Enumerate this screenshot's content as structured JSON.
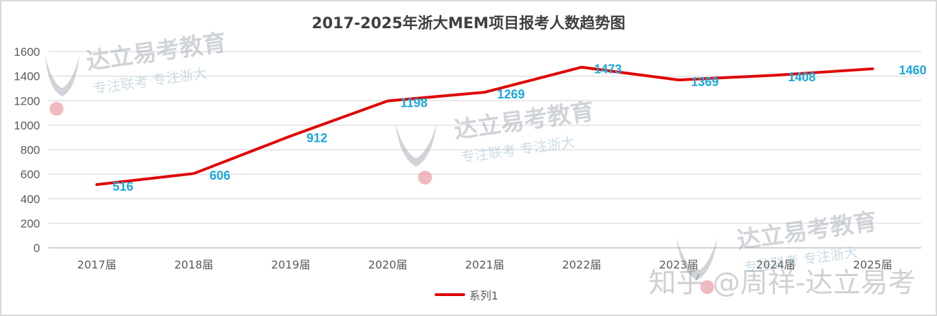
{
  "chart_data": {
    "type": "line",
    "title": "2017-2025年浙大MEM项目报考人数趋势图",
    "categories": [
      "2017届",
      "2018届",
      "2019届",
      "2020届",
      "2021届",
      "2022届",
      "2023届",
      "2024届",
      "2025届"
    ],
    "series": [
      {
        "name": "系列1",
        "values": [
          516,
          606,
          912,
          1198,
          1269,
          1473,
          1369,
          1408,
          1460
        ],
        "color": "#e00000"
      }
    ],
    "xlabel": "",
    "ylabel": "",
    "ylim": [
      0,
      1600
    ],
    "yticks": [
      0,
      200,
      400,
      600,
      800,
      1000,
      1200,
      1400,
      1600
    ],
    "grid": true,
    "data_labels": true,
    "data_label_color": "#1aa7dc",
    "legend_position": "bottom"
  },
  "legend": {
    "label": "系列1"
  },
  "watermarks": {
    "brand_main": "达立易考教育",
    "brand_sub": "专注联考  专注浙大",
    "platform": "知乎 @周祥-达立易考"
  }
}
